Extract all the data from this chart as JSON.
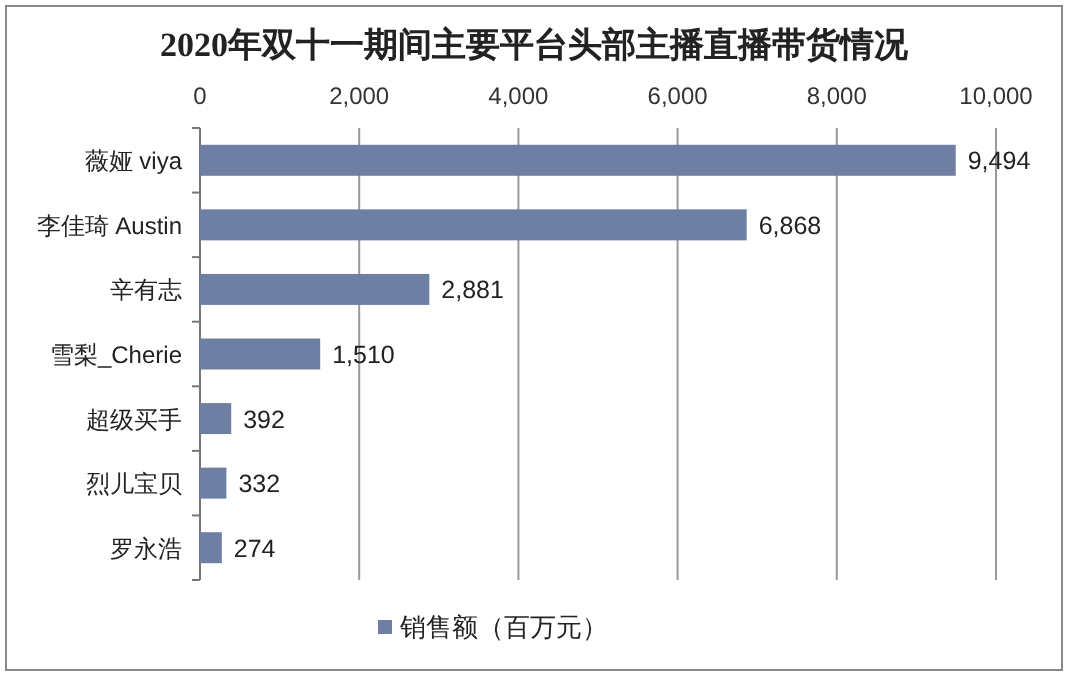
{
  "chart_data": {
    "type": "bar",
    "orientation": "horizontal",
    "title": "2020年双十一期间主要平台头部主播直播带货情况",
    "categories": [
      "薇娅 viya",
      "李佳琦 Austin",
      "辛有志",
      "雪梨_Cherie",
      "超级买手",
      "烈儿宝贝",
      "罗永浩"
    ],
    "series": [
      {
        "name": "销售额（百万元）",
        "color": "#6f7ea3",
        "values": [
          9494,
          6868,
          2881,
          1510,
          392,
          332,
          274
        ],
        "value_labels": [
          "9,494",
          "6,868",
          "2,881",
          "1,510",
          "392",
          "332",
          "274"
        ]
      }
    ],
    "xlim": [
      0,
      10000
    ],
    "xticks": [
      {
        "value": 0,
        "label": "0"
      },
      {
        "value": 2000,
        "label": "2,000"
      },
      {
        "value": 4000,
        "label": "4,000"
      },
      {
        "value": 6000,
        "label": "6,000"
      },
      {
        "value": 8000,
        "label": "8,000"
      },
      {
        "value": 10000,
        "label": "10,000"
      }
    ],
    "grid": "x",
    "legend": "bottom"
  }
}
